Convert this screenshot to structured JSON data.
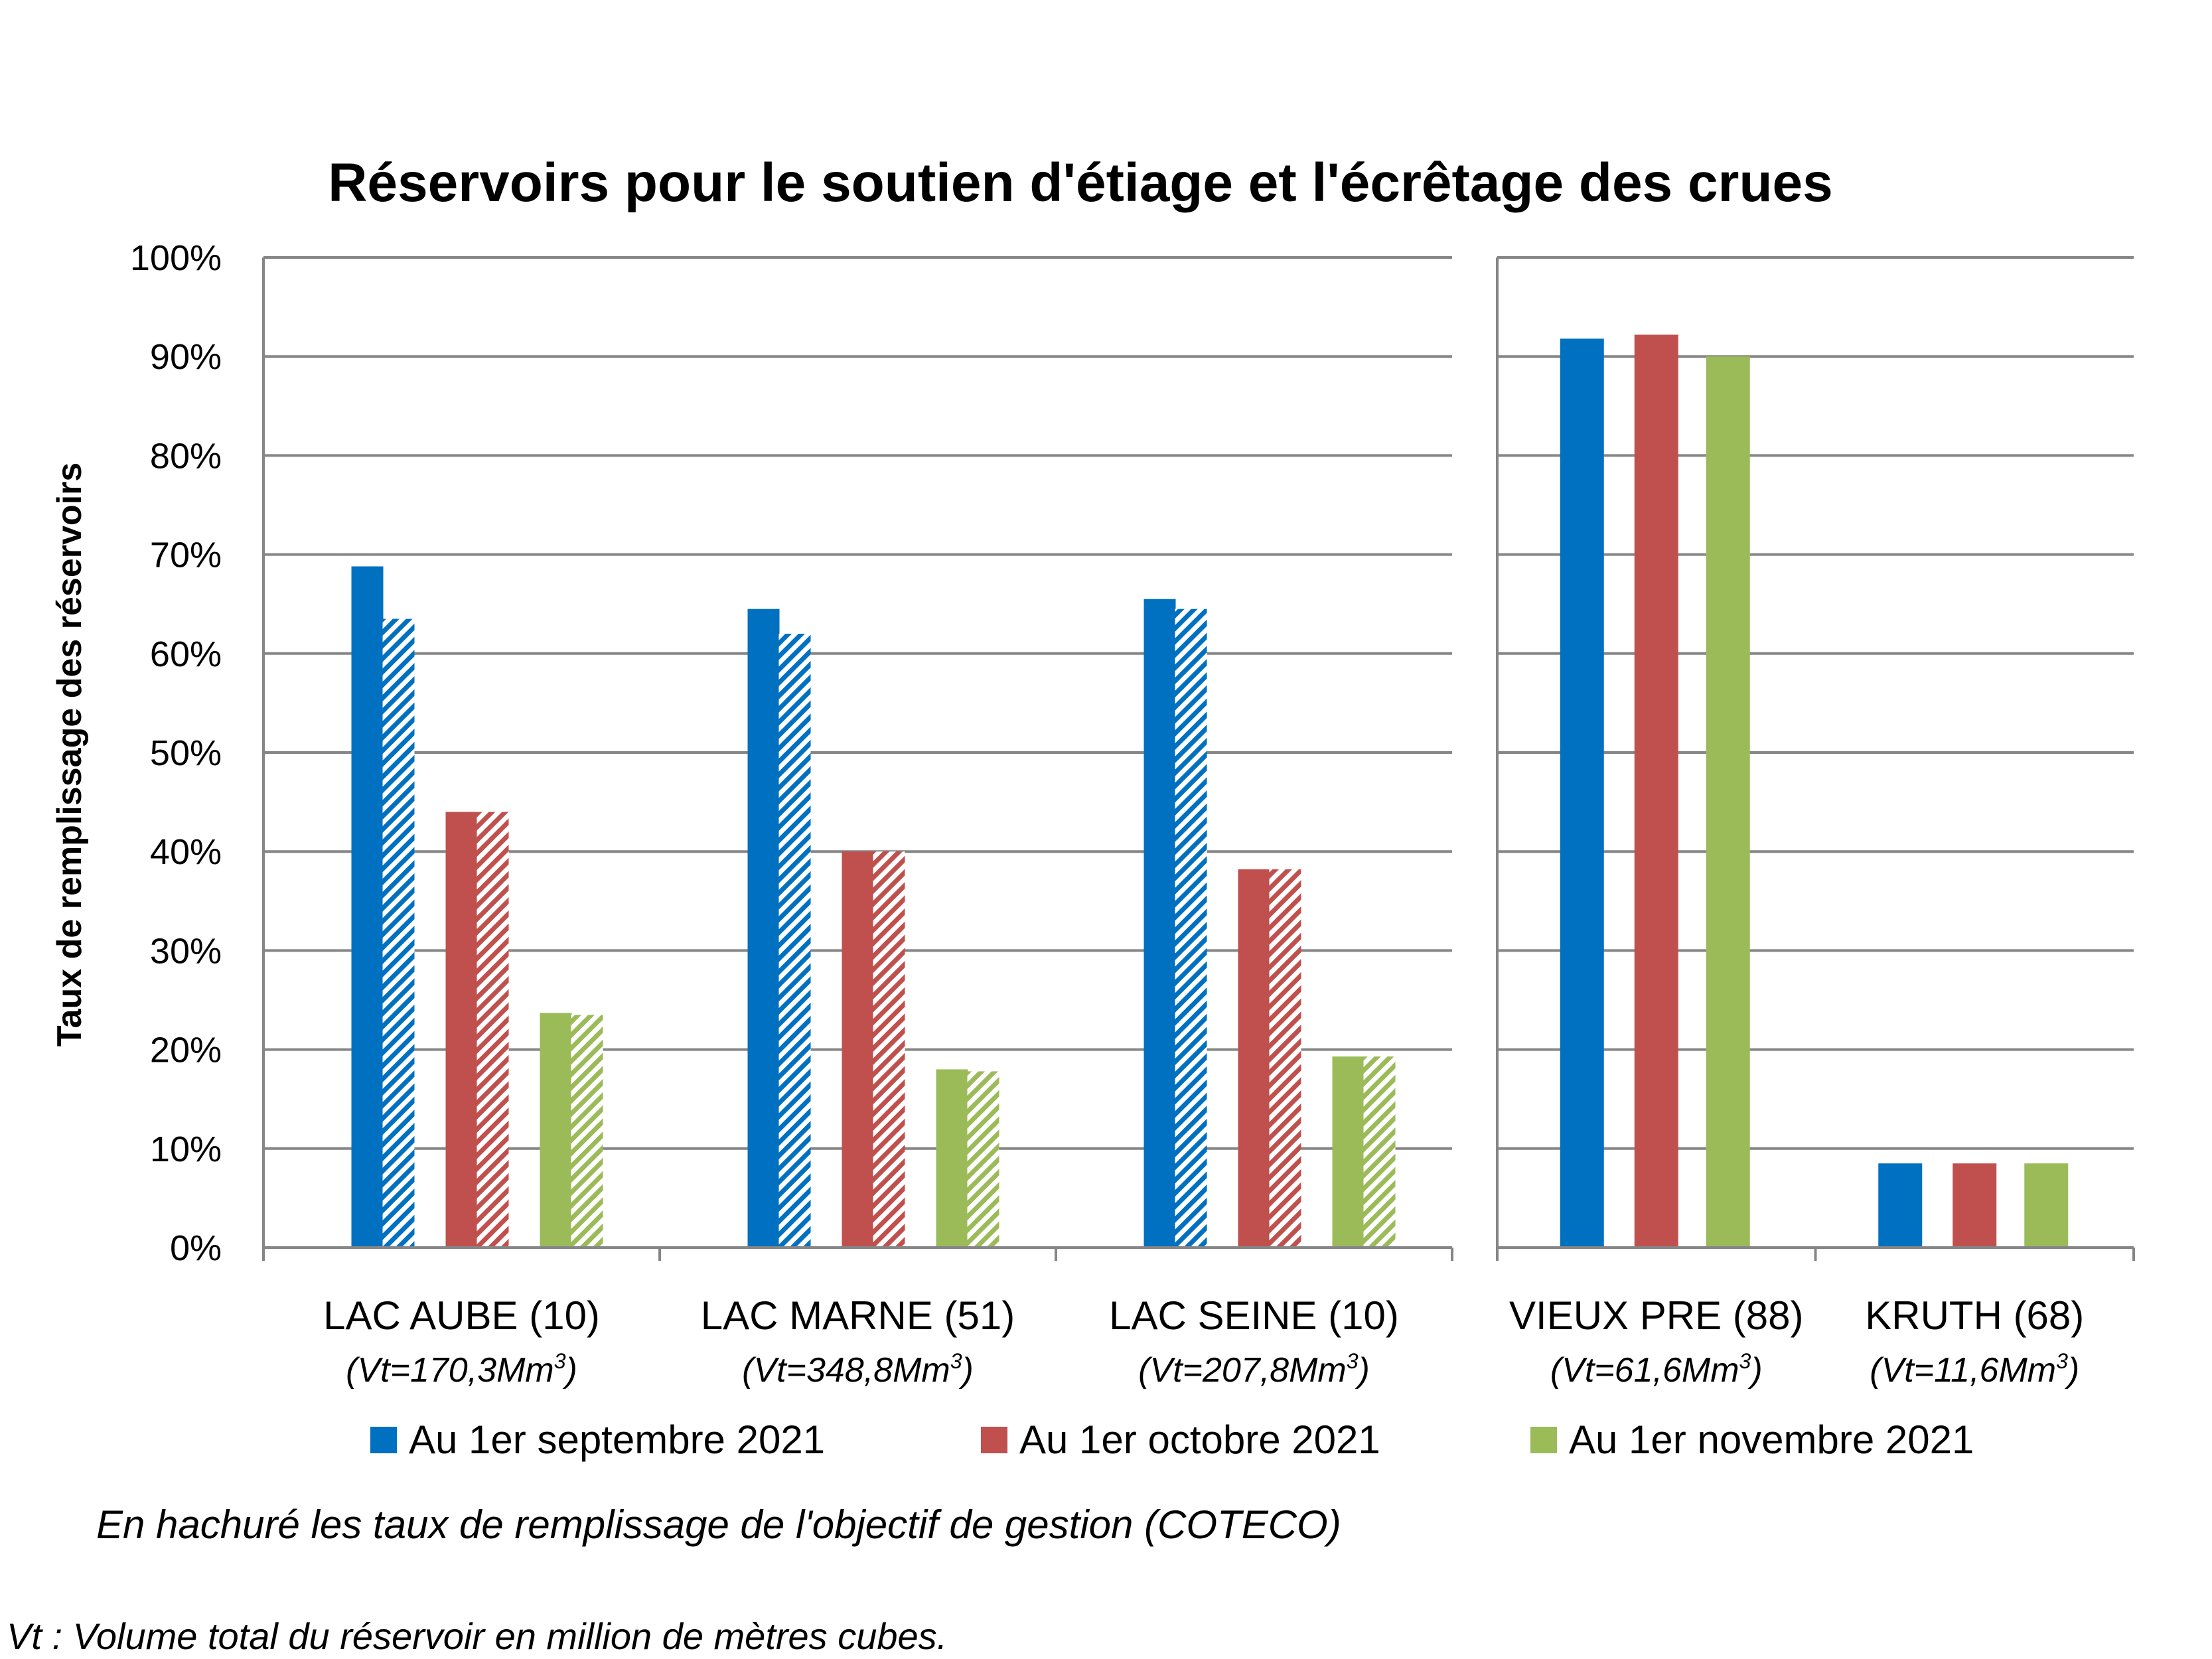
{
  "chart_data": {
    "type": "bar",
    "title": "Réservoirs pour le soutien d'étiage et l'écrêtage des crues",
    "ylabel": "Taux de remplissage des réservoirs",
    "ylim": [
      0,
      100
    ],
    "yticks": [
      "0%",
      "10%",
      "20%",
      "30%",
      "40%",
      "50%",
      "60%",
      "70%",
      "80%",
      "90%",
      "100%"
    ],
    "grid": true,
    "legend_position": "bottom",
    "panels": [
      {
        "categories": [
          {
            "label": "LAC AUBE (10)",
            "sub": "(Vt=170,3Mm",
            "sup": "3",
            "sub_end": ")"
          },
          {
            "label": "LAC MARNE (51)",
            "sub": "(Vt=348,8Mm",
            "sup": "3",
            "sub_end": ")"
          },
          {
            "label": "LAC SEINE (10)",
            "sub": "(Vt=207,8Mm",
            "sup": "3",
            "sub_end": ")"
          }
        ],
        "series": [
          {
            "name": "Au 1er septembre 2021",
            "color": "#0070C0",
            "values": [
              68.8,
              64.5,
              65.5
            ],
            "objective": [
              63.5,
              62.0,
              64.5
            ]
          },
          {
            "name": "Au 1er octobre 2021",
            "color": "#C0504D",
            "values": [
              44.0,
              40.0,
              38.2
            ],
            "objective": [
              44.0,
              40.0,
              38.2
            ]
          },
          {
            "name": "Au 1er novembre 2021",
            "color": "#9BBB59",
            "values": [
              23.7,
              18.0,
              19.3
            ],
            "objective": [
              23.5,
              17.8,
              19.3
            ]
          }
        ]
      },
      {
        "categories": [
          {
            "label": "VIEUX PRE (88)",
            "sub": "(Vt=61,6Mm",
            "sup": "3",
            "sub_end": ")"
          },
          {
            "label": "KRUTH (68)",
            "sub": "(Vt=11,6Mm",
            "sup": "3",
            "sub_end": ")"
          }
        ],
        "series": [
          {
            "name": "Au 1er septembre 2021",
            "color": "#0070C0",
            "values": [
              91.8,
              8.5
            ]
          },
          {
            "name": "Au 1er octobre 2021",
            "color": "#C0504D",
            "values": [
              92.2,
              8.5
            ]
          },
          {
            "name": "Au 1er novembre 2021",
            "color": "#9BBB59",
            "values": [
              90.0,
              8.5
            ]
          }
        ]
      }
    ],
    "legend": [
      {
        "name": "Au 1er septembre 2021",
        "color": "#0070C0"
      },
      {
        "name": "Au 1er octobre 2021",
        "color": "#C0504D"
      },
      {
        "name": "Au 1er novembre 2021",
        "color": "#9BBB59"
      }
    ],
    "note": "En hachuré les taux de remplissage de l'objectif de gestion (COTECO)",
    "footnote": "Vt : Volume total du réservoir en million de mètres cubes."
  }
}
